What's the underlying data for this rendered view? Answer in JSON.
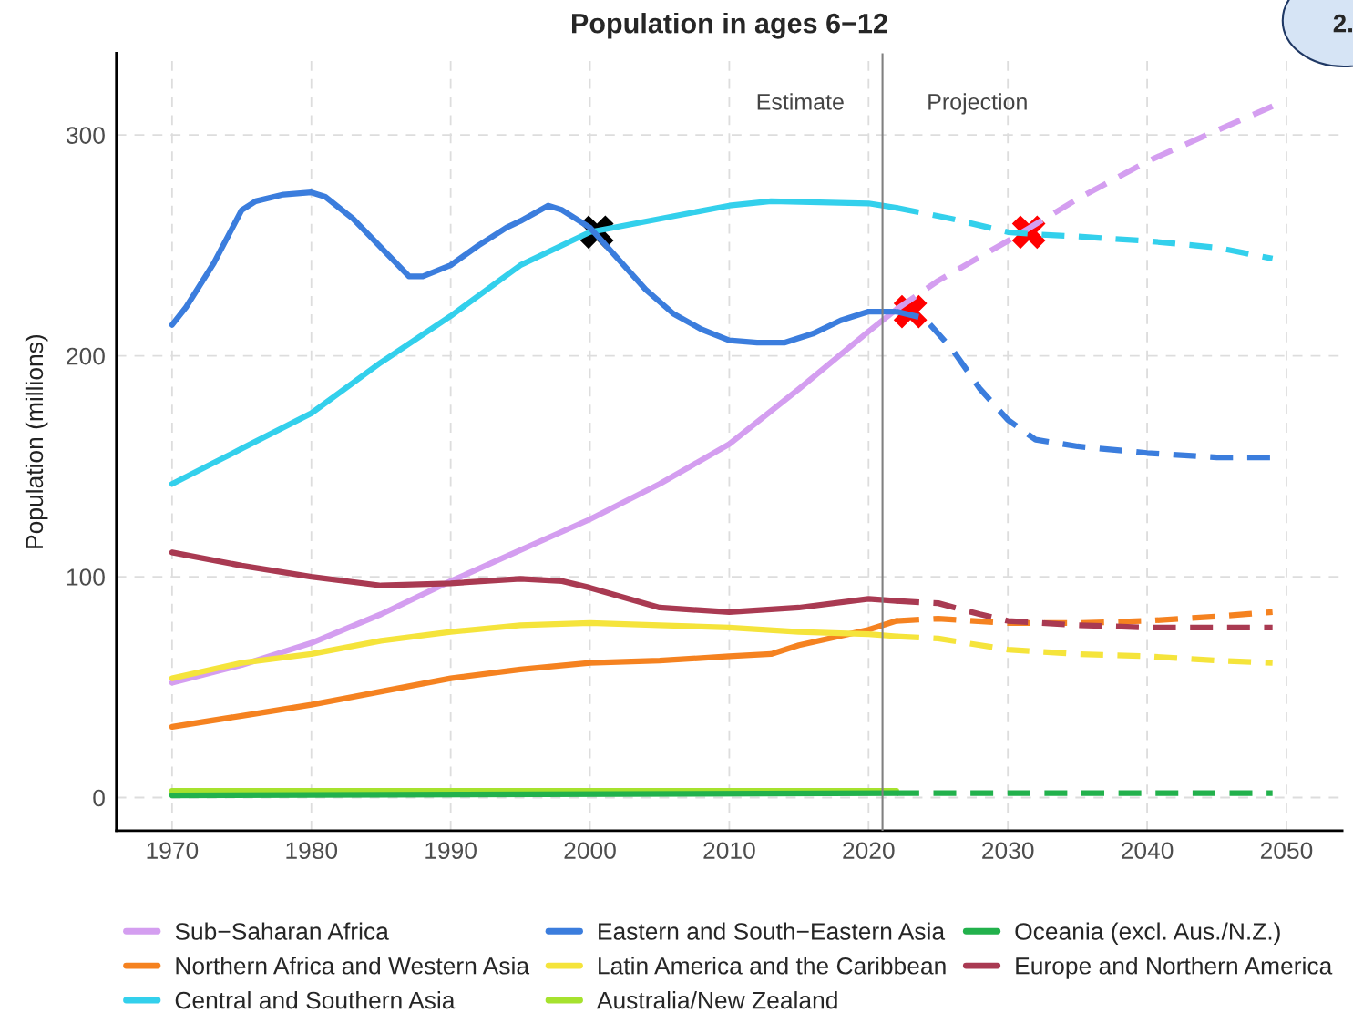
{
  "chart_data": {
    "type": "line",
    "title": "Population in ages 6−12",
    "ylabel": "Population (millions)",
    "xlim": [
      1966,
      2054
    ],
    "xticks": [
      1970,
      1980,
      1990,
      2000,
      2010,
      2020,
      2030,
      2040,
      2050
    ],
    "ylim": [
      -15,
      337
    ],
    "yticks": [
      0,
      100,
      200,
      300
    ],
    "grid": true,
    "legend": "bottom",
    "line_style": "solid",
    "ref_lines": [
      {
        "axis": "x",
        "value": 2021,
        "color": "#808080"
      }
    ],
    "annotations": [
      "Estimate",
      "Projection",
      "2."
    ],
    "series": [
      {
        "name": "Sub−Saharan Africa",
        "color": "#d49ef0",
        "x": [
          1970,
          1975,
          1980,
          1985,
          1990,
          1995,
          2000,
          2005,
          2010,
          2015,
          2020,
          2022
        ],
        "values": [
          52,
          60,
          70,
          83,
          98,
          112,
          126,
          142,
          160,
          185,
          211,
          221
        ]
      },
      {
        "name": "Northern Africa and Western Asia",
        "color": "#f58220",
        "x": [
          1970,
          1975,
          1980,
          1985,
          1990,
          1995,
          2000,
          2005,
          2010,
          2013,
          2015,
          2020,
          2022
        ],
        "values": [
          32,
          37,
          42,
          48,
          54,
          58,
          61,
          62,
          64,
          65,
          69,
          76,
          80
        ]
      },
      {
        "name": "Central and Southern Asia",
        "color": "#33d0ec",
        "x": [
          1970,
          1975,
          1980,
          1985,
          1990,
          1995,
          2000,
          2005,
          2010,
          2013,
          2020,
          2022
        ],
        "values": [
          142,
          158,
          174,
          197,
          218,
          241,
          256,
          262,
          268,
          270,
          269,
          267
        ]
      },
      {
        "name": "Eastern and South−Eastern Asia",
        "color": "#3b7ddd",
        "x": [
          1970,
          1971,
          1973,
          1975,
          1976,
          1978,
          1980,
          1981,
          1983,
          1985,
          1987,
          1988,
          1990,
          1992,
          1994,
          1995,
          1997,
          1998,
          2000,
          2002,
          2004,
          2006,
          2008,
          2010,
          2012,
          2014,
          2016,
          2018,
          2020,
          2022
        ],
        "values": [
          214,
          222,
          242,
          266,
          270,
          273,
          274,
          272,
          262,
          249,
          236,
          236,
          241,
          250,
          258,
          261,
          268,
          266,
          258,
          244,
          230,
          219,
          212,
          207,
          206,
          206,
          210,
          216,
          220,
          220
        ]
      },
      {
        "name": "Latin America and the Caribbean",
        "color": "#f5e43b",
        "x": [
          1970,
          1975,
          1980,
          1985,
          1990,
          1995,
          2000,
          2005,
          2010,
          2015,
          2020,
          2022
        ],
        "values": [
          54,
          61,
          65,
          71,
          75,
          78,
          79,
          78,
          77,
          75,
          74,
          73
        ]
      },
      {
        "name": "Australia/New Zealand",
        "color": "#a6e22e",
        "x": [
          1970,
          2022
        ],
        "values": [
          3,
          3
        ]
      },
      {
        "name": "Oceania (excl. Aus./N.Z.)",
        "color": "#22b14c",
        "x": [
          1970,
          2022
        ],
        "values": [
          1,
          2
        ]
      },
      {
        "name": "Europe and Northern America",
        "color": "#a93a52",
        "x": [
          1970,
          1975,
          1980,
          1985,
          1990,
          1995,
          1998,
          2000,
          2005,
          2010,
          2015,
          2020,
          2022
        ],
        "values": [
          111,
          105,
          100,
          96,
          97,
          99,
          98,
          95,
          86,
          84,
          86,
          90,
          89
        ]
      },
      {
        "color": "#d49ef0",
        "line_style": "dashed",
        "x": [
          2022,
          2025,
          2030,
          2035,
          2040,
          2045,
          2049
        ],
        "values": [
          221,
          234,
          252,
          271,
          288,
          302,
          313
        ]
      },
      {
        "color": "#f58220",
        "line_style": "dashed",
        "x": [
          2022,
          2025,
          2030,
          2035,
          2040,
          2045,
          2049
        ],
        "values": [
          80,
          81,
          79,
          79,
          80,
          82,
          84
        ]
      },
      {
        "color": "#33d0ec",
        "line_style": "dashed",
        "x": [
          2022,
          2026,
          2030,
          2032,
          2035,
          2040,
          2045,
          2049
        ],
        "values": [
          267,
          262,
          256,
          255,
          254,
          252,
          249,
          244
        ]
      },
      {
        "color": "#3b7ddd",
        "line_style": "dashed",
        "x": [
          2022,
          2024,
          2026,
          2028,
          2030,
          2032,
          2035,
          2040,
          2045,
          2049
        ],
        "values": [
          220,
          217,
          203,
          185,
          171,
          162,
          159,
          156,
          154,
          154
        ]
      },
      {
        "color": "#f5e43b",
        "line_style": "dashed",
        "x": [
          2022,
          2025,
          2030,
          2035,
          2040,
          2045,
          2049
        ],
        "values": [
          73,
          72,
          67,
          65,
          64,
          62,
          61
        ]
      },
      {
        "color": "#22b14c",
        "line_style": "dashed",
        "x": [
          2022,
          2049
        ],
        "values": [
          2,
          2
        ]
      },
      {
        "color": "#a93a52",
        "line_style": "dashed",
        "x": [
          2022,
          2025,
          2028,
          2030,
          2035,
          2040,
          2045,
          2049
        ],
        "values": [
          89,
          88,
          83,
          80,
          78,
          77,
          77,
          77
        ]
      },
      {
        "type": "scatter",
        "marker": "cross",
        "colors": [
          "#000000",
          "#ff0000",
          "#ff0000"
        ],
        "x": [
          2000.5,
          2023,
          2031.5
        ],
        "values": [
          256,
          220,
          256
        ]
      }
    ]
  }
}
